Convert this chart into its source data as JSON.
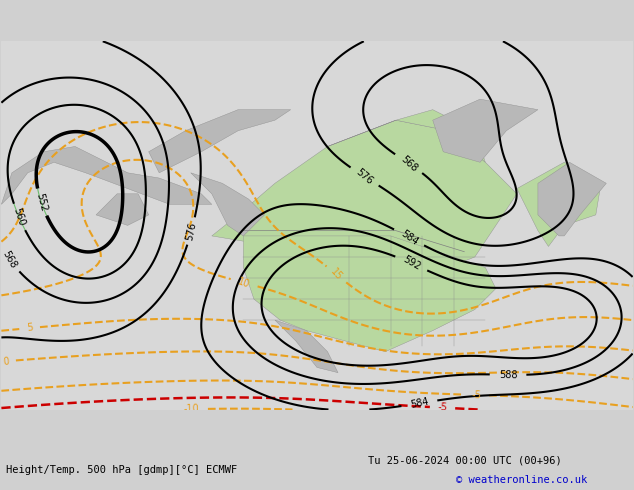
{
  "title": "Height/Temp. 500 hPa [gdmp][°C] ECMWF",
  "bg_color": "#d0d0d0",
  "land_green_color": "#b8d8a0",
  "fig_width": 6.34,
  "fig_height": 4.9,
  "dpi": 100,
  "black_contour_color": "#000000",
  "orange_contour_color": "#e8a020",
  "red_contour_color": "#cc0000",
  "cyan_contour_color": "#00b8b8",
  "green_contour_color": "#40b040",
  "footer_left": "Height/Temp. 500 hPa [gdmp][°C] ECMWF",
  "footer_right": "Tu 25-06-2024 00:00 UTC (00+96)",
  "footer_copy": "© weatheronline.co.uk"
}
